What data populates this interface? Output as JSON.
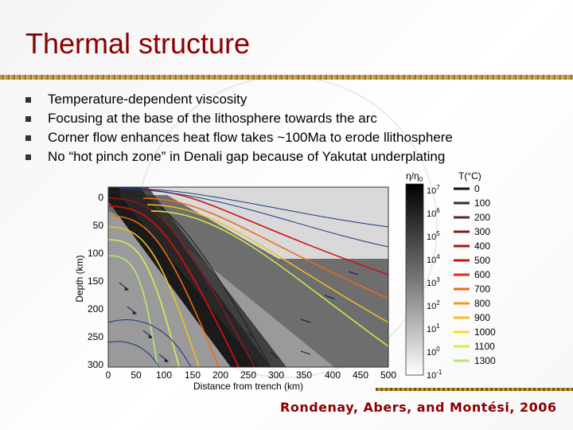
{
  "slide": {
    "title": "Thermal structure",
    "bullets": [
      "Temperature-dependent viscosity",
      "Focusing at the base of the lithosphere towards the arc",
      "Corner flow enhances heat flow takes ~100Ma to erode llithosphere",
      "No “hot pinch zone” in Denali gap because of Yakutat underplating"
    ],
    "citation": "Rondenay, Abers, and Montési, 2006"
  },
  "figure": {
    "xlabel": "Distance from trench (km)",
    "ylabel": "Depth (km)",
    "x_ticks": [
      "0",
      "50",
      "100",
      "150",
      "200",
      "250",
      "300",
      "350",
      "400",
      "450",
      "500"
    ],
    "y_ticks": [
      "0",
      "50",
      "100",
      "150",
      "200",
      "250",
      "300"
    ],
    "viscosity_label": "η/η",
    "viscosity_label_sub": "0",
    "viscosity_ticks": [
      {
        "base": "10",
        "exp": "7"
      },
      {
        "base": "10",
        "exp": "6"
      },
      {
        "base": "10",
        "exp": "5"
      },
      {
        "base": "10",
        "exp": "4"
      },
      {
        "base": "10",
        "exp": "3"
      },
      {
        "base": "10",
        "exp": "2"
      },
      {
        "base": "10",
        "exp": "1"
      },
      {
        "base": "10",
        "exp": "0"
      },
      {
        "base": "10",
        "exp": "-1"
      }
    ],
    "temperature_label": "T(°C)",
    "temperature_entries": [
      {
        "label": "0",
        "color": "#111111"
      },
      {
        "label": "100",
        "color": "#3a2a2a"
      },
      {
        "label": "200",
        "color": "#5b2a2a"
      },
      {
        "label": "300",
        "color": "#7a2020"
      },
      {
        "label": "400",
        "color": "#a01818"
      },
      {
        "label": "500",
        "color": "#c81414"
      },
      {
        "label": "600",
        "color": "#e02a10"
      },
      {
        "label": "700",
        "color": "#ee6a10"
      },
      {
        "label": "800",
        "color": "#f29a18"
      },
      {
        "label": "900",
        "color": "#f0c020"
      },
      {
        "label": "1000",
        "color": "#f0e020"
      },
      {
        "label": "1100",
        "color": "#d8ec50"
      },
      {
        "label": "1300",
        "color": "#b8e878"
      }
    ]
  }
}
